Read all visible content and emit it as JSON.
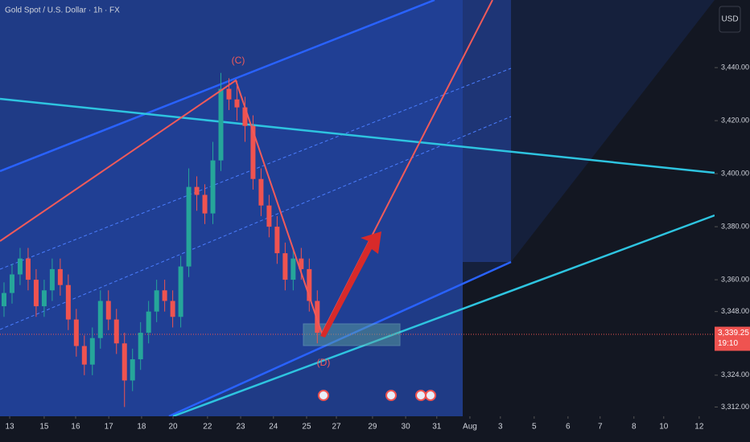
{
  "chart_data": {
    "type": "candlestick",
    "title": "Gold Spot / U.S. Dollar · 1h · FX",
    "currency": "USD",
    "annotations": [
      "(C)",
      "(D)"
    ],
    "up_color": "#26a69a",
    "down_color": "#ef5350",
    "x": [
      -0.17,
      0.07,
      0.31,
      0.55,
      0.79,
      1.03,
      1.27,
      1.51,
      1.75,
      1.99,
      2.23,
      2.47,
      2.71,
      2.95,
      3.19,
      3.43,
      3.67,
      3.91,
      4.15,
      4.39,
      4.63,
      4.87,
      5.11,
      5.35,
      5.59,
      5.83,
      6.07,
      6.31,
      6.55,
      6.79,
      7.03,
      7.27,
      7.51,
      7.75,
      7.99,
      8.23,
      8.47,
      8.71,
      8.95,
      9.19
    ],
    "open": [
      3350,
      3355,
      3362,
      3368,
      3360,
      3350,
      3356,
      3364,
      3358,
      3345,
      3335,
      3328,
      3338,
      3352,
      3345,
      3336,
      3322,
      3330,
      3340,
      3348,
      3356,
      3352,
      3346,
      3365,
      3395,
      3392,
      3385,
      3405,
      3432,
      3428,
      3425,
      3418,
      3398,
      3388,
      3380,
      3370,
      3360,
      3368,
      3364,
      3352
    ],
    "high": [
      3359,
      3366,
      3372,
      3372,
      3364,
      3360,
      3368,
      3368,
      3362,
      3349,
      3339,
      3342,
      3356,
      3356,
      3349,
      3340,
      3334,
      3344,
      3352,
      3360,
      3360,
      3356,
      3369,
      3402,
      3399,
      3396,
      3412,
      3438,
      3436,
      3435,
      3429,
      3422,
      3402,
      3392,
      3384,
      3374,
      3372,
      3372,
      3368,
      3356
    ],
    "low": [
      3346,
      3351,
      3358,
      3356,
      3346,
      3346,
      3352,
      3354,
      3341,
      3331,
      3324,
      3324,
      3334,
      3341,
      3332,
      3312,
      3318,
      3326,
      3336,
      3344,
      3348,
      3342,
      3342,
      3361,
      3386,
      3381,
      3381,
      3401,
      3424,
      3420,
      3412,
      3394,
      3384,
      3376,
      3366,
      3356,
      3356,
      3360,
      3348,
      3336
    ],
    "close": [
      3355,
      3362,
      3368,
      3360,
      3350,
      3356,
      3364,
      3358,
      3345,
      3335,
      3328,
      3338,
      3352,
      3345,
      3336,
      3322,
      3330,
      3340,
      3348,
      3356,
      3352,
      3346,
      3365,
      3395,
      3392,
      3385,
      3405,
      3432,
      3428,
      3425,
      3418,
      3398,
      3388,
      3380,
      3370,
      3360,
      3368,
      3364,
      3352,
      3340
    ],
    "current_price": {
      "value": 3339.25,
      "label": "3,339.25"
    },
    "countdown": "19:10",
    "ylim": [
      3308.5,
      3465.5
    ],
    "yticks": [
      {
        "value": 3312,
        "label": "3,312.00"
      },
      {
        "value": 3324,
        "label": "3,324.00"
      },
      {
        "value": 3348,
        "label": "3,348.00"
      },
      {
        "value": 3360,
        "label": "3,360.00"
      },
      {
        "value": 3380,
        "label": "3,380.00"
      },
      {
        "value": 3400,
        "label": "3,400.00"
      },
      {
        "value": 3420,
        "label": "3,420.00"
      },
      {
        "value": 3440,
        "label": "3,440.00"
      }
    ],
    "xlim": [
      -0.29,
      21.06
    ],
    "xticks": [
      {
        "value": 0,
        "label": "13"
      },
      {
        "value": 1.03,
        "label": "15"
      },
      {
        "value": 1.97,
        "label": "16"
      },
      {
        "value": 2.96,
        "label": "17"
      },
      {
        "value": 3.94,
        "label": "18"
      },
      {
        "value": 4.88,
        "label": "20"
      },
      {
        "value": 5.91,
        "label": "22"
      },
      {
        "value": 6.9,
        "label": "23"
      },
      {
        "value": 7.88,
        "label": "24"
      },
      {
        "value": 8.87,
        "label": "25"
      },
      {
        "value": 9.76,
        "label": "27"
      },
      {
        "value": 10.84,
        "label": "29"
      },
      {
        "value": 11.83,
        "label": "30"
      },
      {
        "value": 12.76,
        "label": "31"
      },
      {
        "value": 13.75,
        "label": "Aug"
      },
      {
        "value": 14.66,
        "label": "3"
      },
      {
        "value": 15.67,
        "label": "5"
      },
      {
        "value": 16.68,
        "label": "6"
      },
      {
        "value": 17.64,
        "label": "7"
      },
      {
        "value": 18.65,
        "label": "8"
      },
      {
        "value": 19.54,
        "label": "10"
      },
      {
        "value": 20.6,
        "label": "12"
      }
    ]
  }
}
